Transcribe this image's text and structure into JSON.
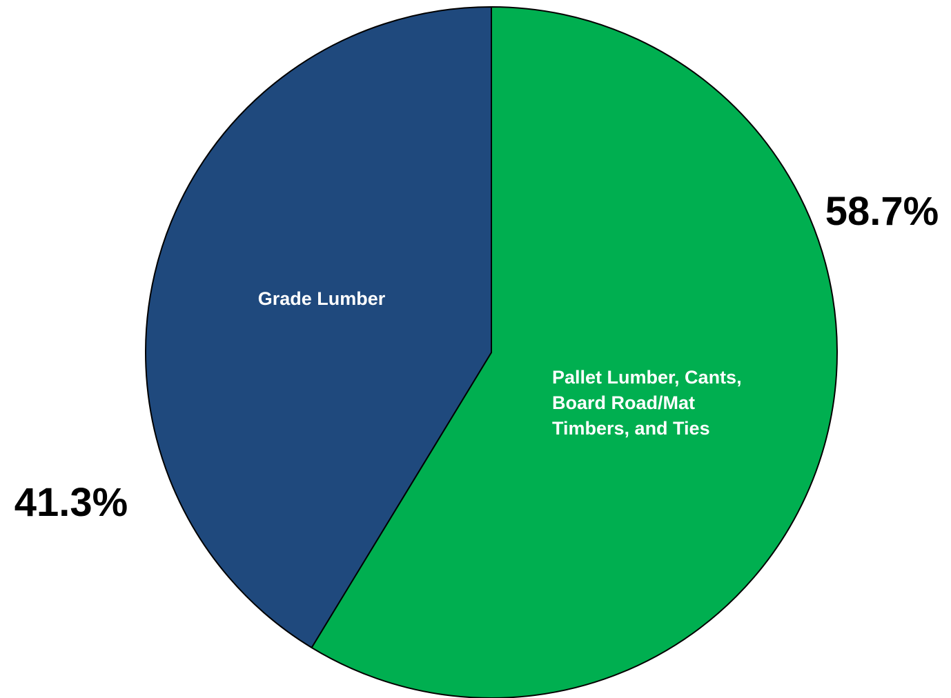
{
  "chart_data": {
    "type": "pie",
    "title": "",
    "start_angle_deg": 0,
    "direction": "clockwise",
    "slices": [
      {
        "label_lines": [
          "Pallet Lumber, Cants,",
          "Board Road/Mat",
          "Timbers, and Ties"
        ],
        "value": 58.7,
        "value_label": "58.7%",
        "color": "#00AF50"
      },
      {
        "label_lines": [
          "Grade Lumber"
        ],
        "value": 41.3,
        "value_label": "41.3%",
        "color": "#1F497D"
      }
    ],
    "outline_color": "#000000"
  }
}
